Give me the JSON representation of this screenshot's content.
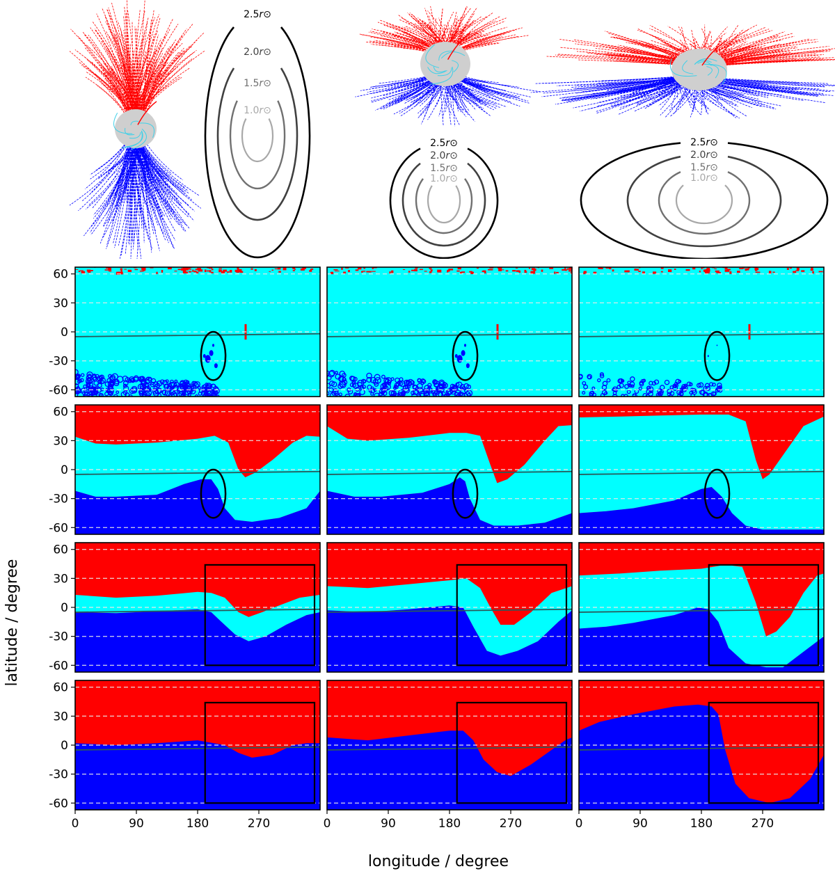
{
  "chart_data": {
    "type": "heatmap",
    "xlabel": "longitude / degree",
    "ylabel": "latitude / degree",
    "xticks": [
      "0",
      "90",
      "180",
      "270"
    ],
    "yticks": [
      "60",
      "30",
      "0",
      "-30",
      "-60"
    ],
    "xlim": [
      0,
      360
    ],
    "ylim": [
      -67,
      67
    ],
    "polarity_colors": {
      "positive": "#ff0000",
      "neutral": "#00ffff",
      "negative": "#0000ff"
    },
    "radius_labels": [
      {
        "value": "2.5",
        "unit": "r⊙",
        "color": "#000000"
      },
      {
        "value": "2.0",
        "unit": "r⊙",
        "color": "#404040"
      },
      {
        "value": "1.5",
        "unit": "r⊙",
        "color": "#707070"
      },
      {
        "value": "1.0",
        "unit": "r⊙",
        "color": "#a8a8a8"
      }
    ],
    "columns": [
      {
        "stretch": "vertical",
        "source_surface_aspect": [
          0.6,
          1.5
        ]
      },
      {
        "stretch": "none",
        "source_surface_aspect": [
          1.0,
          1.0
        ]
      },
      {
        "stretch": "horizontal",
        "source_surface_aspect": [
          1.8,
          0.7
        ]
      }
    ],
    "rows": [
      {
        "radius": "1.0 r⊙",
        "marker": "ellipse"
      },
      {
        "radius": "1.5 r⊙",
        "marker": "ellipse"
      },
      {
        "radius": "2.0 r⊙",
        "marker": "box"
      },
      {
        "radius": "2.5 r⊙",
        "marker": "box"
      }
    ],
    "markers": {
      "ellipse": {
        "center_lon": 203,
        "center_lat": -25,
        "half_width_lon": 18,
        "half_height_lat": 25
      },
      "box": {
        "lon_range": [
          191,
          360
        ],
        "lat_range": [
          -60,
          44
        ]
      }
    },
    "equator_line": {
      "lat_at_0": -5,
      "lat_at_360": -2
    },
    "neutral_band_boundaries_lat": {
      "row2": [
        {
          "upper": [
            [
              0,
              34
            ],
            [
              30,
              27
            ],
            [
              60,
              26
            ],
            [
              120,
              28
            ],
            [
              180,
              32
            ],
            [
              205,
              35
            ],
            [
              225,
              28
            ],
            [
              240,
              0
            ],
            [
              250,
              -8
            ],
            [
              265,
              -3
            ],
            [
              290,
              10
            ],
            [
              320,
              28
            ],
            [
              340,
              35
            ],
            [
              360,
              34
            ]
          ],
          "lower": [
            [
              0,
              -22
            ],
            [
              30,
              -28
            ],
            [
              60,
              -28
            ],
            [
              120,
              -26
            ],
            [
              160,
              -15
            ],
            [
              185,
              -10
            ],
            [
              200,
              -10
            ],
            [
              210,
              -20
            ],
            [
              220,
              -40
            ],
            [
              235,
              -52
            ],
            [
              260,
              -54
            ],
            [
              300,
              -50
            ],
            [
              340,
              -40
            ],
            [
              360,
              -22
            ]
          ]
        },
        {
          "upper": [
            [
              0,
              45
            ],
            [
              30,
              32
            ],
            [
              60,
              30
            ],
            [
              120,
              33
            ],
            [
              180,
              38
            ],
            [
              205,
              38
            ],
            [
              225,
              35
            ],
            [
              240,
              5
            ],
            [
              250,
              -14
            ],
            [
              265,
              -10
            ],
            [
              290,
              5
            ],
            [
              320,
              30
            ],
            [
              340,
              45
            ],
            [
              360,
              46
            ]
          ],
          "lower": [
            [
              0,
              -22
            ],
            [
              40,
              -28
            ],
            [
              80,
              -28
            ],
            [
              140,
              -24
            ],
            [
              180,
              -15
            ],
            [
              195,
              -8
            ],
            [
              203,
              -12
            ],
            [
              210,
              -30
            ],
            [
              225,
              -52
            ],
            [
              245,
              -58
            ],
            [
              280,
              -58
            ],
            [
              320,
              -55
            ],
            [
              360,
              -45
            ]
          ]
        },
        {
          "upper": [
            [
              0,
              54
            ],
            [
              60,
              55
            ],
            [
              120,
              56
            ],
            [
              180,
              57
            ],
            [
              220,
              57
            ],
            [
              245,
              50
            ],
            [
              260,
              10
            ],
            [
              270,
              -10
            ],
            [
              280,
              -5
            ],
            [
              300,
              15
            ],
            [
              330,
              45
            ],
            [
              360,
              55
            ]
          ],
          "lower": [
            [
              0,
              -45
            ],
            [
              40,
              -43
            ],
            [
              80,
              -40
            ],
            [
              140,
              -32
            ],
            [
              180,
              -20
            ],
            [
              195,
              -18
            ],
            [
              210,
              -28
            ],
            [
              225,
              -45
            ],
            [
              245,
              -58
            ],
            [
              270,
              -62
            ],
            [
              300,
              -62
            ],
            [
              360,
              -62
            ]
          ]
        }
      ],
      "row3": [
        {
          "upper": [
            [
              0,
              13
            ],
            [
              60,
              10
            ],
            [
              120,
              12
            ],
            [
              180,
              16
            ],
            [
              200,
              15
            ],
            [
              220,
              10
            ],
            [
              240,
              -5
            ],
            [
              255,
              -10
            ],
            [
              275,
              -5
            ],
            [
              300,
              2
            ],
            [
              330,
              10
            ],
            [
              360,
              13
            ]
          ],
          "lower": [
            [
              0,
              -5
            ],
            [
              60,
              -6
            ],
            [
              120,
              -4
            ],
            [
              180,
              -2
            ],
            [
              200,
              -5
            ],
            [
              215,
              -15
            ],
            [
              235,
              -28
            ],
            [
              255,
              -35
            ],
            [
              280,
              -30
            ],
            [
              310,
              -18
            ],
            [
              340,
              -8
            ],
            [
              360,
              -5
            ]
          ]
        },
        {
          "upper": [
            [
              0,
              22
            ],
            [
              60,
              20
            ],
            [
              120,
              24
            ],
            [
              180,
              28
            ],
            [
              205,
              30
            ],
            [
              225,
              20
            ],
            [
              240,
              0
            ],
            [
              255,
              -18
            ],
            [
              275,
              -18
            ],
            [
              300,
              -5
            ],
            [
              330,
              15
            ],
            [
              360,
              22
            ]
          ],
          "lower": [
            [
              0,
              -3
            ],
            [
              60,
              -5
            ],
            [
              120,
              -2
            ],
            [
              180,
              2
            ],
            [
              200,
              0
            ],
            [
              215,
              -20
            ],
            [
              235,
              -45
            ],
            [
              255,
              -50
            ],
            [
              280,
              -45
            ],
            [
              310,
              -35
            ],
            [
              340,
              -15
            ],
            [
              360,
              -3
            ]
          ]
        },
        {
          "upper": [
            [
              0,
              33
            ],
            [
              60,
              35
            ],
            [
              120,
              38
            ],
            [
              180,
              40
            ],
            [
              215,
              44
            ],
            [
              240,
              42
            ],
            [
              260,
              5
            ],
            [
              275,
              -30
            ],
            [
              290,
              -25
            ],
            [
              310,
              -10
            ],
            [
              330,
              15
            ],
            [
              350,
              33
            ],
            [
              360,
              35
            ]
          ],
          "lower": [
            [
              0,
              -22
            ],
            [
              40,
              -20
            ],
            [
              80,
              -16
            ],
            [
              140,
              -8
            ],
            [
              175,
              0
            ],
            [
              190,
              -2
            ],
            [
              205,
              -15
            ],
            [
              220,
              -42
            ],
            [
              245,
              -58
            ],
            [
              275,
              -62
            ],
            [
              300,
              -62
            ],
            [
              360,
              -30
            ]
          ]
        }
      ],
      "row4_pos_neg_boundary": [
        [
          [
            0,
            2
          ],
          [
            60,
            0
          ],
          [
            120,
            2
          ],
          [
            180,
            5
          ],
          [
            220,
            0
          ],
          [
            240,
            -8
          ],
          [
            260,
            -13
          ],
          [
            290,
            -10
          ],
          [
            320,
            0
          ],
          [
            340,
            2
          ],
          [
            360,
            2
          ]
        ],
        [
          [
            0,
            8
          ],
          [
            60,
            5
          ],
          [
            120,
            10
          ],
          [
            180,
            15
          ],
          [
            200,
            15
          ],
          [
            215,
            5
          ],
          [
            230,
            -15
          ],
          [
            250,
            -28
          ],
          [
            270,
            -32
          ],
          [
            300,
            -20
          ],
          [
            330,
            -5
          ],
          [
            350,
            5
          ],
          [
            360,
            8
          ]
        ],
        [
          [
            0,
            15
          ],
          [
            30,
            24
          ],
          [
            80,
            32
          ],
          [
            140,
            40
          ],
          [
            175,
            42
          ],
          [
            195,
            40
          ],
          [
            205,
            32
          ],
          [
            215,
            -5
          ],
          [
            230,
            -40
          ],
          [
            250,
            -55
          ],
          [
            280,
            -60
          ],
          [
            310,
            -55
          ],
          [
            340,
            -35
          ],
          [
            360,
            -10
          ]
        ]
      ]
    },
    "row1_features": {
      "north_polar_red_fragments": "lat 63-67 all longitudes",
      "south_blue_network": "lat -67 to -45, lon 0-200",
      "blue_blobs_near_marker": "lon 185-215, lat -35 to -10",
      "red_streak": "lon 250, lat -8 to 5"
    }
  }
}
